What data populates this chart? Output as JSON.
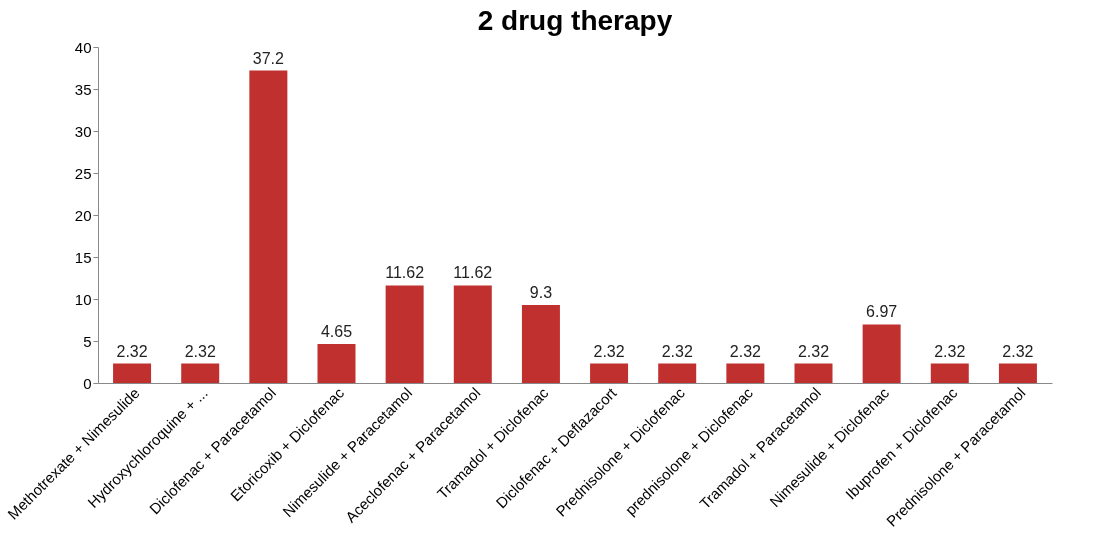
{
  "chart_data": {
    "type": "bar",
    "title": "2 drug therapy",
    "categories": [
      "Methotrexate + Nimesulide",
      "Hydroxychloroquine + ...",
      "Diclofenac + Paracetamol",
      "Etoricoxib + Diclofenac",
      "Nimesulide + Paracetamol",
      "Aceclofenac + Paracetamol",
      "Tramadol + Diclofenac",
      "Diclofenac + Deflazacort",
      "Prednisolone + Diclofenac",
      "prednisolone + Diclofenac",
      "Tramadol + Paracetamol",
      "Nimesulide + Diclofenac",
      "Ibuprofen + Diclofenac",
      "Prednisolone + Paracetamol"
    ],
    "values": [
      2.32,
      2.32,
      37.2,
      4.65,
      11.62,
      11.62,
      9.3,
      2.32,
      2.32,
      2.32,
      2.32,
      6.97,
      2.32,
      2.32
    ],
    "color": "#c0302e",
    "ylim": [
      0,
      40
    ],
    "yticks": [
      0,
      5,
      10,
      15,
      20,
      25,
      30,
      35,
      40
    ],
    "grid": false,
    "data_labels": true
  }
}
